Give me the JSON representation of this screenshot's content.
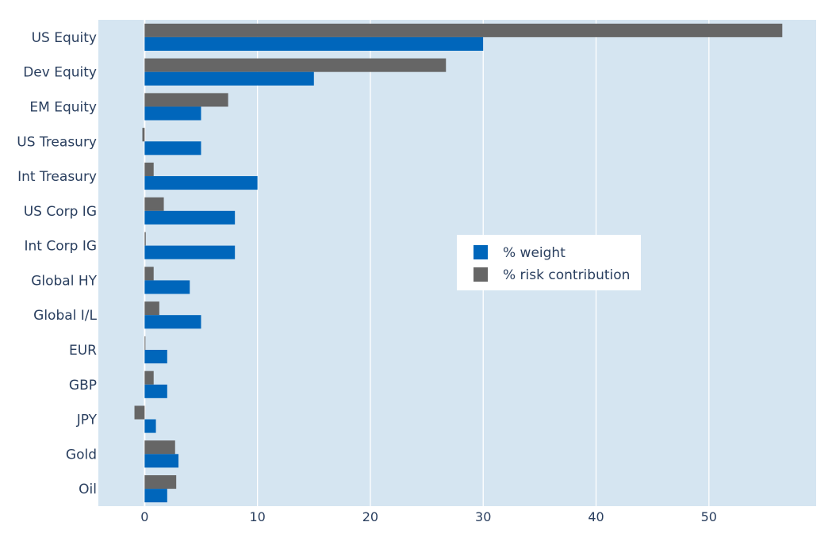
{
  "chart_data": {
    "type": "bar",
    "orientation": "horizontal",
    "categories": [
      "US Equity",
      "Dev Equity",
      "EM Equity",
      "US Treasury",
      "Int Treasury",
      "US Corp IG",
      "Int Corp IG",
      "Global HY",
      "Global I/L",
      "EUR",
      "GBP",
      "JPY",
      "Gold",
      "Oil"
    ],
    "series": [
      {
        "name": "% weight",
        "color": "#0066bb",
        "values": [
          30,
          15,
          5,
          5,
          10,
          8,
          8,
          4,
          5,
          2,
          2,
          1,
          3,
          2
        ]
      },
      {
        "name": "% risk contribution",
        "color": "#666666",
        "values": [
          56.5,
          26.7,
          7.4,
          -0.2,
          0.8,
          1.7,
          0.1,
          0.8,
          1.3,
          0.05,
          0.8,
          -0.9,
          2.7,
          2.8
        ]
      }
    ],
    "xlim": [
      -4.1,
      59.5
    ],
    "x_ticks": [
      0,
      10,
      20,
      30,
      40,
      50
    ],
    "grid": true,
    "legend_position": "center-right",
    "plot_background": "#d5e5f1"
  }
}
